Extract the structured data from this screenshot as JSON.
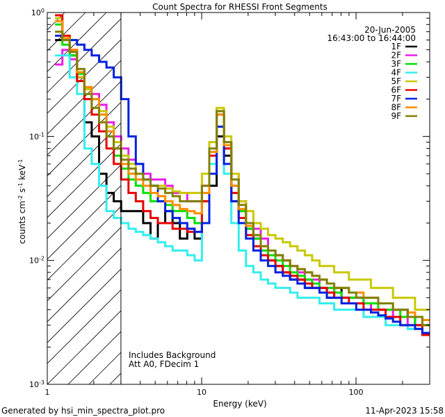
{
  "chart_data": {
    "type": "line",
    "title": "Count Spectra for RHESSI Front Segments",
    "xlabel": "Energy (keV)",
    "ylabel_html": "counts cm<tspan baseline-shift='super' font-size='8'>-2</tspan> s<tspan baseline-shift='super' font-size='8'>-1</tspan> keV<tspan baseline-shift='super' font-size='8'>-1</tspan>",
    "ylabel": "counts cm-2 s-1 keV-1",
    "xscale": "log",
    "yscale": "log",
    "xlim": [
      1,
      300
    ],
    "ylim": [
      0.001,
      1
    ],
    "x_ticks": [
      {
        "v": 1,
        "label": "1"
      },
      {
        "v": 10,
        "label": "10"
      },
      {
        "v": 100,
        "label": "100"
      }
    ],
    "y_ticks": [
      {
        "v": 1,
        "label": "10",
        "exp": "0"
      },
      {
        "v": 0.1,
        "label": "10",
        "exp": "-1"
      },
      {
        "v": 0.01,
        "label": "10",
        "exp": "-2"
      },
      {
        "v": 0.001,
        "label": "10",
        "exp": "-3"
      }
    ],
    "date": "20-Jun-2005",
    "time_range": "16:43:00 to 16:44:00",
    "annotation_line1": "Includes Background",
    "annotation_line2": "Att A0, FDecim 1",
    "hatched_below_keV": 3,
    "series": [
      {
        "name": "1F",
        "color": "#000000",
        "values": [
          0.6,
          0.6,
          0.45,
          0.3,
          0.13,
          0.1,
          0.05,
          0.035,
          0.03,
          0.025,
          0.025,
          0.025,
          0.02,
          0.015,
          0.02,
          0.025,
          0.02,
          0.015,
          0.018,
          0.015,
          0.02,
          0.04,
          0.1,
          0.07,
          0.03,
          0.025,
          0.018,
          0.015,
          0.012,
          0.01,
          0.009,
          0.008,
          0.007,
          0.007,
          0.006,
          0.006,
          0.006,
          0.005,
          0.006,
          0.005,
          0.005,
          0.005,
          0.0045,
          0.0045,
          0.004,
          0.004,
          0.004,
          0.004,
          0.0035,
          0.003,
          0.003
        ]
      },
      {
        "name": "2F",
        "color": "#e81ee8",
        "values": [
          0.38,
          0.5,
          0.42,
          0.3,
          0.25,
          0.22,
          0.18,
          0.13,
          0.1,
          0.08,
          0.065,
          0.06,
          0.05,
          0.045,
          0.045,
          0.04,
          0.035,
          0.035,
          0.03,
          0.03,
          0.04,
          0.07,
          0.15,
          0.08,
          0.05,
          0.03,
          0.02,
          0.018,
          0.015,
          0.012,
          0.011,
          0.01,
          0.009,
          0.008,
          0.007,
          0.007,
          0.006,
          0.006,
          0.0055,
          0.005,
          0.005,
          0.005,
          0.0045,
          0.004,
          0.004,
          0.004,
          0.0035,
          0.0035,
          0.003,
          0.003,
          0.003
        ]
      },
      {
        "name": "3F",
        "color": "#00e000",
        "values": [
          0.8,
          0.55,
          0.45,
          0.32,
          0.25,
          0.2,
          0.15,
          0.1,
          0.07,
          0.055,
          0.045,
          0.04,
          0.035,
          0.03,
          0.03,
          0.028,
          0.025,
          0.025,
          0.022,
          0.02,
          0.03,
          0.07,
          0.16,
          0.09,
          0.04,
          0.025,
          0.018,
          0.015,
          0.012,
          0.011,
          0.01,
          0.009,
          0.008,
          0.0075,
          0.007,
          0.0065,
          0.006,
          0.006,
          0.0055,
          0.005,
          0.005,
          0.005,
          0.0045,
          0.0045,
          0.004,
          0.004,
          0.004,
          0.0035,
          0.0035,
          0.003,
          0.003
        ]
      },
      {
        "name": "4F",
        "color": "#33eeee",
        "values": [
          0.45,
          0.45,
          0.3,
          0.22,
          0.08,
          0.06,
          0.04,
          0.025,
          0.022,
          0.02,
          0.018,
          0.017,
          0.016,
          0.015,
          0.014,
          0.013,
          0.012,
          0.012,
          0.011,
          0.01,
          0.02,
          0.06,
          0.12,
          0.05,
          0.02,
          0.012,
          0.009,
          0.008,
          0.007,
          0.0065,
          0.006,
          0.006,
          0.0055,
          0.005,
          0.005,
          0.005,
          0.0045,
          0.0045,
          0.004,
          0.004,
          0.004,
          0.004,
          0.0035,
          0.0035,
          0.0035,
          0.003,
          0.003,
          0.003,
          0.0028,
          0.0028,
          0.0025
        ]
      },
      {
        "name": "5F",
        "color": "#c8c800",
        "values": [
          0.9,
          0.65,
          0.5,
          0.3,
          0.24,
          0.2,
          0.16,
          0.12,
          0.09,
          0.07,
          0.06,
          0.05,
          0.045,
          0.04,
          0.04,
          0.038,
          0.036,
          0.035,
          0.035,
          0.035,
          0.05,
          0.09,
          0.17,
          0.1,
          0.05,
          0.03,
          0.025,
          0.02,
          0.018,
          0.016,
          0.015,
          0.014,
          0.013,
          0.012,
          0.011,
          0.01,
          0.009,
          0.009,
          0.008,
          0.008,
          0.007,
          0.007,
          0.007,
          0.006,
          0.006,
          0.006,
          0.005,
          0.005,
          0.005,
          0.004,
          0.004
        ]
      },
      {
        "name": "6F",
        "color": "#e80000",
        "values": [
          0.95,
          0.65,
          0.5,
          0.28,
          0.2,
          0.15,
          0.11,
          0.08,
          0.06,
          0.045,
          0.035,
          0.03,
          0.025,
          0.022,
          0.02,
          0.02,
          0.018,
          0.018,
          0.017,
          0.017,
          0.03,
          0.07,
          0.15,
          0.08,
          0.035,
          0.022,
          0.016,
          0.013,
          0.011,
          0.01,
          0.009,
          0.008,
          0.0075,
          0.007,
          0.0065,
          0.006,
          0.006,
          0.0055,
          0.005,
          0.005,
          0.0045,
          0.0045,
          0.004,
          0.004,
          0.004,
          0.0035,
          0.0035,
          0.003,
          0.003,
          0.003,
          0.0025
        ]
      },
      {
        "name": "7F",
        "color": "#0020e0",
        "values": [
          0.65,
          0.62,
          0.6,
          0.55,
          0.5,
          0.45,
          0.4,
          0.36,
          0.3,
          0.2,
          0.1,
          0.06,
          0.045,
          0.04,
          0.03,
          0.025,
          0.022,
          0.02,
          0.018,
          0.017,
          0.02,
          0.05,
          0.12,
          0.06,
          0.03,
          0.02,
          0.015,
          0.012,
          0.01,
          0.009,
          0.008,
          0.0075,
          0.007,
          0.0065,
          0.006,
          0.006,
          0.0055,
          0.005,
          0.005,
          0.0045,
          0.0045,
          0.004,
          0.004,
          0.0038,
          0.0036,
          0.0034,
          0.0032,
          0.003,
          0.003,
          0.0028,
          0.0026
        ]
      },
      {
        "name": "8F",
        "color": "#ff8c00",
        "values": [
          0.85,
          0.62,
          0.5,
          0.33,
          0.25,
          0.2,
          0.15,
          0.11,
          0.08,
          0.06,
          0.05,
          0.045,
          0.04,
          0.035,
          0.033,
          0.03,
          0.028,
          0.026,
          0.025,
          0.024,
          0.035,
          0.075,
          0.15,
          0.085,
          0.04,
          0.026,
          0.019,
          0.016,
          0.013,
          0.012,
          0.011,
          0.01,
          0.009,
          0.0085,
          0.008,
          0.0075,
          0.007,
          0.0065,
          0.006,
          0.006,
          0.0055,
          0.0055,
          0.005,
          0.005,
          0.0045,
          0.0045,
          0.004,
          0.004,
          0.0038,
          0.0035,
          0.0033
        ]
      },
      {
        "name": "9F",
        "color": "#808000",
        "values": [
          0.7,
          0.6,
          0.48,
          0.35,
          0.22,
          0.17,
          0.13,
          0.1,
          0.08,
          0.065,
          0.055,
          0.05,
          0.045,
          0.04,
          0.038,
          0.035,
          0.033,
          0.03,
          0.03,
          0.03,
          0.04,
          0.08,
          0.16,
          0.09,
          0.045,
          0.028,
          0.02,
          0.016,
          0.013,
          0.012,
          0.011,
          0.01,
          0.009,
          0.0085,
          0.008,
          0.0075,
          0.007,
          0.0065,
          0.006,
          0.006,
          0.0055,
          0.005,
          0.005,
          0.005,
          0.0045,
          0.0045,
          0.004,
          0.004,
          0.0035,
          0.0035,
          0.003
        ]
      }
    ]
  },
  "footer": {
    "left": "Generated by hsi_min_spectra_plot.pro",
    "right": "11-Apr-2023 15:58"
  }
}
